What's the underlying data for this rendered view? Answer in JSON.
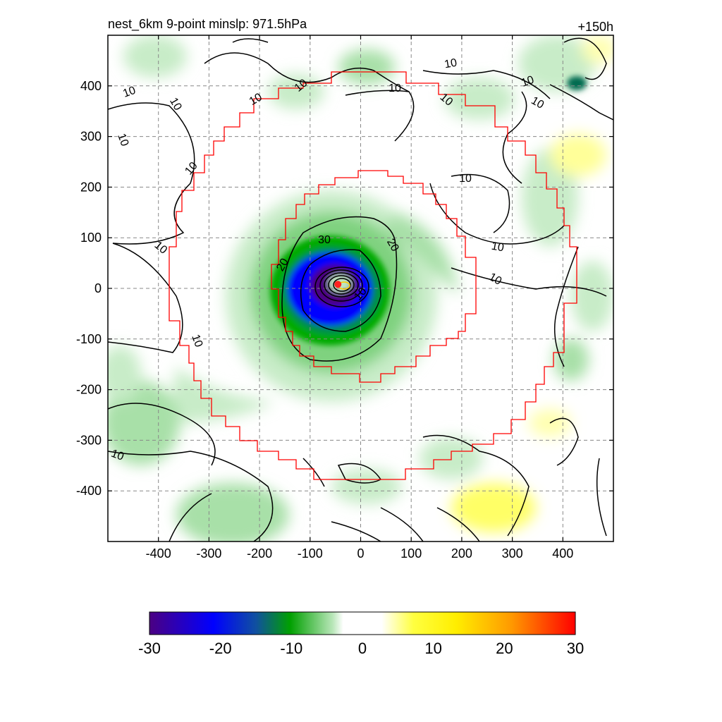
{
  "title_left": "nest_6km  9-point minslp: 971.5hPa",
  "title_right": "+150h",
  "chart_data": {
    "type": "heatmap",
    "title": "nest_6km  9-point minslp: 971.5hPa",
    "subtitle": "+150h",
    "xlabel": "",
    "ylabel": "",
    "xlim": [
      -500,
      500
    ],
    "ylim": [
      -500,
      500
    ],
    "x_ticks": [
      -400,
      -300,
      -200,
      -100,
      0,
      100,
      200,
      300,
      400
    ],
    "y_ticks": [
      400,
      300,
      200,
      100,
      0,
      -100,
      -200,
      -300,
      -400
    ],
    "grid": true,
    "colorbar": {
      "min": -30,
      "max": 30,
      "ticks": [
        -30,
        -20,
        -10,
        0,
        10,
        20,
        30
      ],
      "colors": [
        "#4b0082",
        "#0000ff",
        "#006b6b",
        "#00a000",
        "#a8e0a8",
        "#ffffff",
        "#ffff00",
        "#ffc800",
        "#ff0000"
      ]
    },
    "contour_labels": [
      "10",
      "10",
      "10",
      "10",
      "10",
      "10",
      "10",
      "10",
      "10",
      "10",
      "10",
      "10",
      "10",
      "10",
      "10",
      "10",
      "10",
      "20",
      "20",
      "30",
      "10"
    ],
    "storm_center": {
      "x": -45,
      "y": 8
    }
  }
}
